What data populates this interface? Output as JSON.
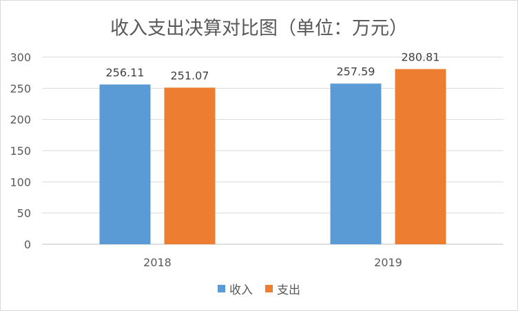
{
  "chart_data": {
    "type": "bar",
    "title": "收入支出决算对比图（单位：万元）",
    "categories": [
      "2018",
      "2019"
    ],
    "series": [
      {
        "name": "收入",
        "values": [
          256.11,
          257.59
        ],
        "labels": [
          "256.11",
          "257.59"
        ],
        "color": "#5B9BD5"
      },
      {
        "name": "支出",
        "values": [
          251.07,
          280.81
        ],
        "labels": [
          "251.07",
          "280.81"
        ],
        "color": "#ED7D31"
      }
    ],
    "y_ticks": [
      "0",
      "50",
      "100",
      "150",
      "200",
      "250",
      "300"
    ],
    "ylim": [
      0,
      300
    ],
    "grid": true,
    "legend_position": "bottom"
  }
}
